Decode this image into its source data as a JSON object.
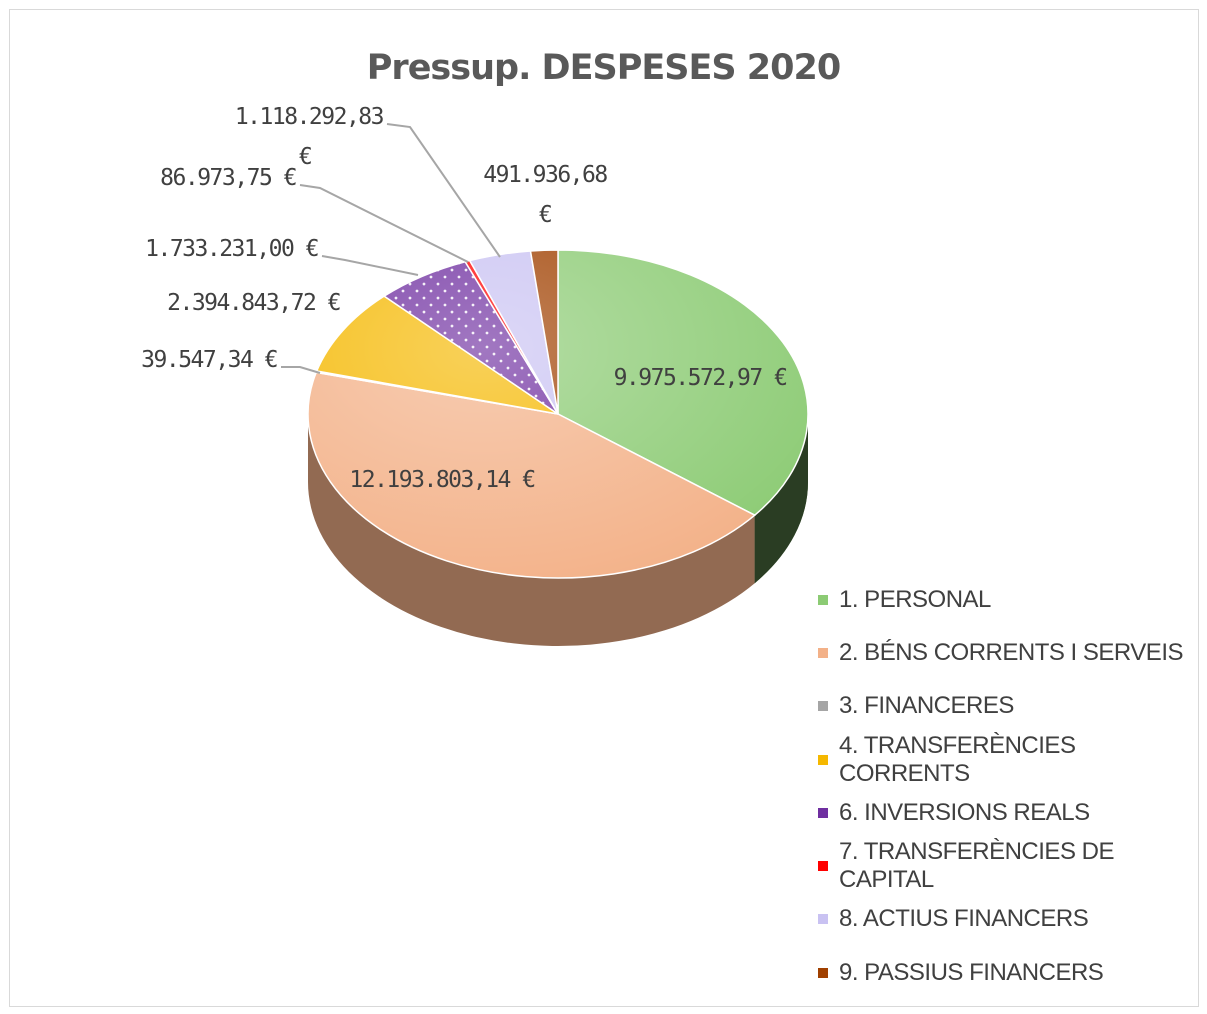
{
  "chart_data": {
    "type": "pie",
    "title": "Pressup. DESPESES 2020",
    "legend_position": "right",
    "slices": [
      {
        "name": "1. PERSONAL",
        "value": 9975572.97,
        "label": "9.975.572,97 €",
        "color": "#8ccb74"
      },
      {
        "name": "2. BÉNS CORRENTS I SERVEIS",
        "value": 12193803.14,
        "label": "12.193.803,14 €",
        "color": "#f3b188"
      },
      {
        "name": "3. FINANCERES",
        "value": 39547.34,
        "label": "39.547,34 €",
        "color": "#a5a5a5"
      },
      {
        "name": "4. TRANSFERÈNCIES CORRENTS",
        "value": 2394843.72,
        "label": "2.394.843,72 €",
        "color": "#f5b800"
      },
      {
        "name": "6. INVERSIONS REALS",
        "value": 1733231.0,
        "label": "1.733.231,00 €",
        "color": "#6f2fa0"
      },
      {
        "name": "7. TRANSFERÈNCIES DE CAPITAL",
        "value": 86973.75,
        "label": "86.973,75 €",
        "color": "#ff0000"
      },
      {
        "name": "8. ACTIUS FINANCERS",
        "value": 1118292.83,
        "label": "1.118.292,83 €",
        "color": "#c9c2f2"
      },
      {
        "name": "9. PASSIUS FINANCERS",
        "value": 491936.68,
        "label": "491.936,68 €",
        "color": "#a04000"
      }
    ]
  }
}
